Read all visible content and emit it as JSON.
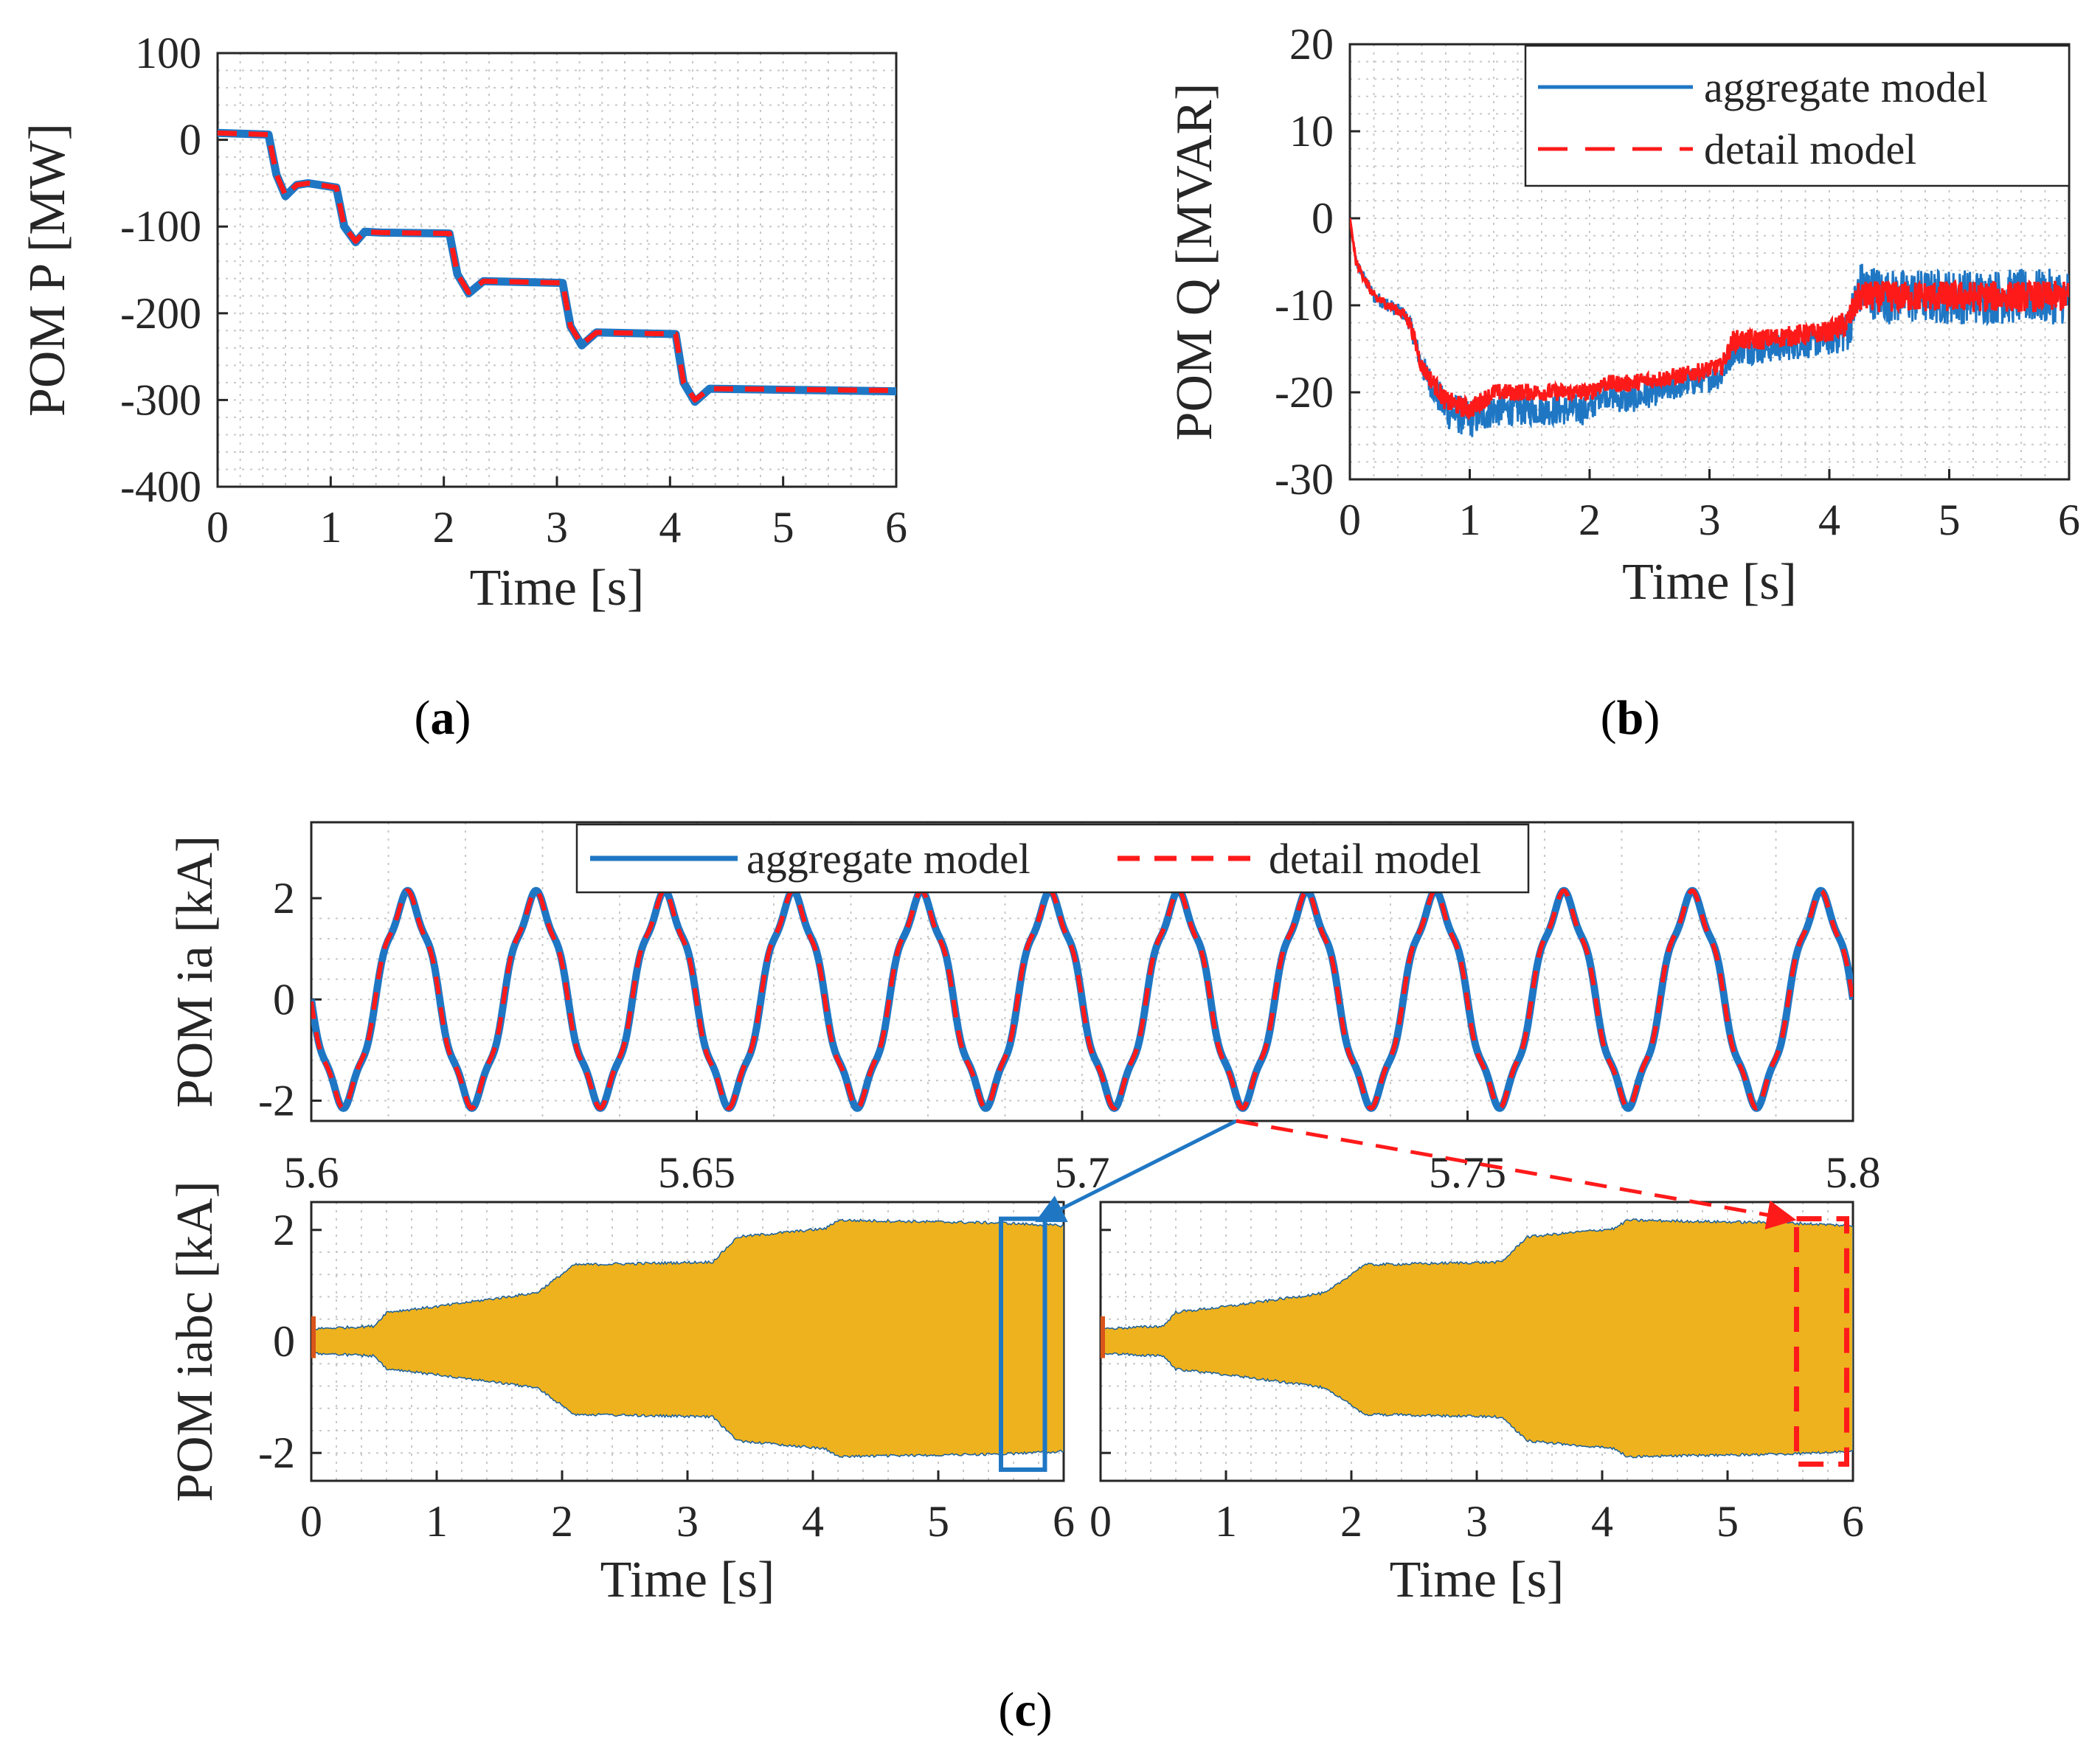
{
  "colors": {
    "aggregate": "#1f77c4",
    "detail": "#ff1a1a",
    "envelope": "#eeb21f",
    "axis": "#262626",
    "grid": "#c8c8c8"
  },
  "captions": {
    "a": "a",
    "b": "b",
    "c": "c"
  },
  "chart_data": [
    {
      "id": "a",
      "type": "line",
      "title": "",
      "xlabel": "Time [s]",
      "ylabel": "POM P [MW]",
      "xlim": [
        0,
        6
      ],
      "ylim": [
        -400,
        100
      ],
      "xticks": [
        0,
        1,
        2,
        3,
        4,
        5,
        6
      ],
      "xtick_labels": [
        "0",
        "1",
        "2",
        "3",
        "4",
        "5",
        "6"
      ],
      "yticks": [
        100,
        0,
        -100,
        -200,
        -300,
        -400
      ],
      "ytick_labels": [
        "100",
        "0",
        "-100",
        "-200",
        "-300",
        "-400"
      ],
      "grid": true,
      "series": [
        {
          "name": "aggregate model",
          "style": "solid",
          "x": [
            0,
            0.45,
            0.52,
            0.6,
            0.7,
            0.8,
            1.05,
            1.12,
            1.22,
            1.3,
            1.45,
            2.05,
            2.12,
            2.22,
            2.35,
            3.05,
            3.12,
            3.22,
            3.35,
            4.05,
            4.12,
            4.22,
            4.35,
            6
          ],
          "values": [
            8,
            6,
            -40,
            -65,
            -52,
            -50,
            -55,
            -100,
            -118,
            -106,
            -107,
            -108,
            -155,
            -177,
            -163,
            -165,
            -215,
            -237,
            -222,
            -224,
            -280,
            -302,
            -287,
            -290
          ]
        },
        {
          "name": "detail model",
          "style": "dashed",
          "x": [
            0,
            0.45,
            0.52,
            0.6,
            0.7,
            0.8,
            1.05,
            1.12,
            1.22,
            1.3,
            1.45,
            2.05,
            2.12,
            2.22,
            2.35,
            3.05,
            3.12,
            3.22,
            3.35,
            4.05,
            4.12,
            4.22,
            4.35,
            6
          ],
          "values": [
            8,
            6,
            -40,
            -64,
            -52,
            -50,
            -55,
            -100,
            -117,
            -106,
            -107,
            -108,
            -155,
            -176,
            -163,
            -165,
            -215,
            -236,
            -222,
            -224,
            -280,
            -300,
            -287,
            -289
          ]
        }
      ]
    },
    {
      "id": "b",
      "type": "line",
      "title": "",
      "xlabel": "Time [s]",
      "ylabel": "POM Q [MVAR]",
      "xlim": [
        0,
        6
      ],
      "ylim": [
        -30,
        20
      ],
      "xticks": [
        0,
        1,
        2,
        3,
        4,
        5,
        6
      ],
      "xtick_labels": [
        "0",
        "1",
        "2",
        "3",
        "4",
        "5",
        "6"
      ],
      "yticks": [
        20,
        10,
        0,
        -10,
        -20,
        -30
      ],
      "ytick_labels": [
        "20",
        "10",
        "0",
        "-10",
        "-20",
        "-30"
      ],
      "grid": true,
      "legend": "top-right",
      "series": [
        {
          "name": "aggregate model",
          "style": "solid",
          "x": [
            0,
            0.05,
            0.2,
            0.45,
            0.5,
            0.6,
            0.8,
            1.0,
            1.2,
            1.5,
            2.0,
            2.1,
            2.3,
            2.8,
            3.1,
            3.2,
            3.4,
            4.0,
            4.15,
            4.25,
            4.5,
            6.0
          ],
          "values": [
            0,
            -5,
            -9,
            -11,
            -12,
            -17,
            -22,
            -23,
            -22,
            -22,
            -22,
            -20,
            -21,
            -19,
            -18,
            -15,
            -15,
            -14,
            -13,
            -8,
            -9,
            -9
          ],
          "noise": [
            0,
            0.5,
            0.8,
            0.8,
            1.0,
            1.5,
            2.2,
            2.4,
            2.0,
            1.8,
            1.8,
            1.6,
            1.6,
            1.6,
            1.6,
            1.8,
            1.8,
            1.8,
            2.5,
            3.2,
            3.2,
            3.2
          ]
        },
        {
          "name": "detail model",
          "style": "dashed",
          "x": [
            0,
            0.05,
            0.2,
            0.45,
            0.5,
            0.6,
            0.8,
            1.0,
            1.2,
            1.5,
            2.0,
            2.1,
            2.3,
            2.8,
            3.1,
            3.2,
            3.4,
            4.0,
            4.15,
            4.25,
            4.5,
            6.0
          ],
          "values": [
            0,
            -5,
            -9,
            -11,
            -12,
            -17,
            -21,
            -22,
            -20,
            -20,
            -20,
            -19,
            -19,
            -18,
            -17,
            -14,
            -14,
            -13,
            -12,
            -9,
            -9,
            -9
          ],
          "noise": [
            0,
            0.4,
            0.6,
            0.6,
            0.8,
            1.0,
            1.2,
            1.2,
            1.0,
            1.0,
            1.0,
            1.0,
            1.0,
            1.0,
            1.0,
            1.2,
            1.2,
            1.2,
            1.6,
            1.8,
            1.8,
            1.8
          ]
        }
      ]
    },
    {
      "id": "c1",
      "type": "line",
      "title": "",
      "xlabel": "",
      "ylabel": "POM ia [kA]",
      "xlim": [
        5.6,
        5.8
      ],
      "ylim": [
        -2.4,
        3.5
      ],
      "xticks": [
        5.6,
        5.65,
        5.7,
        5.75,
        5.8
      ],
      "xtick_labels": [
        "5.6",
        "5.65",
        "5.7",
        "5.75",
        "5.8"
      ],
      "yticks": [
        2,
        0,
        -2
      ],
      "ytick_labels": [
        "2",
        "0",
        "-2"
      ],
      "grid": true,
      "legend": "top",
      "waveform": {
        "amplitude": 2,
        "frequency_hz": 60,
        "harmonic_amplitude": 0.15,
        "harmonic_order": 5
      },
      "series": [
        {
          "name": "aggregate model",
          "style": "solid"
        },
        {
          "name": "detail model",
          "style": "dashed"
        }
      ]
    },
    {
      "id": "c2",
      "type": "area",
      "title": "",
      "xlabel": "Time [s]",
      "ylabel": "POM iabc [kA]",
      "xlim": [
        0,
        6
      ],
      "ylim": [
        -2.5,
        2.5
      ],
      "xticks": [
        0,
        1,
        2,
        3,
        4,
        5,
        6
      ],
      "xtick_labels": [
        "0",
        "1",
        "2",
        "3",
        "4",
        "5",
        "6"
      ],
      "yticks": [
        2,
        0,
        -2
      ],
      "ytick_labels": [
        "2",
        "0",
        "-2"
      ],
      "grid": true,
      "envelope": {
        "x": [
          0,
          0.5,
          0.6,
          1.0,
          1.8,
          2.1,
          3.2,
          3.4,
          4.1,
          4.2,
          5.5,
          6.0
        ],
        "amplitude": [
          0.2,
          0.25,
          0.5,
          0.6,
          0.85,
          1.35,
          1.4,
          1.85,
          2.0,
          2.15,
          2.1,
          2.05
        ]
      },
      "zoom_box": {
        "x_range": [
          5.5,
          5.85
        ],
        "y_range": [
          -2.3,
          2.2
        ],
        "style": "solid"
      }
    },
    {
      "id": "c3",
      "type": "area",
      "title": "",
      "xlabel": "Time [s]",
      "ylabel": "",
      "xlim": [
        0,
        6
      ],
      "ylim": [
        -2.5,
        2.5
      ],
      "xticks": [
        0,
        1,
        2,
        3,
        4,
        5,
        6
      ],
      "xtick_labels": [
        "0",
        "1",
        "2",
        "3",
        "4",
        "5",
        "6"
      ],
      "yticks": [
        2,
        0,
        -2
      ],
      "ytick_labels": [
        "",
        "",
        ""
      ],
      "grid": true,
      "envelope": {
        "x": [
          0,
          0.5,
          0.6,
          1.0,
          1.8,
          2.1,
          3.2,
          3.4,
          4.1,
          4.2,
          5.5,
          6.0
        ],
        "amplitude": [
          0.2,
          0.25,
          0.5,
          0.6,
          0.85,
          1.35,
          1.4,
          1.85,
          2.0,
          2.15,
          2.1,
          2.05
        ]
      },
      "zoom_box": {
        "x_range": [
          5.55,
          5.95
        ],
        "y_range": [
          -2.2,
          2.2
        ],
        "style": "dashed"
      }
    }
  ]
}
